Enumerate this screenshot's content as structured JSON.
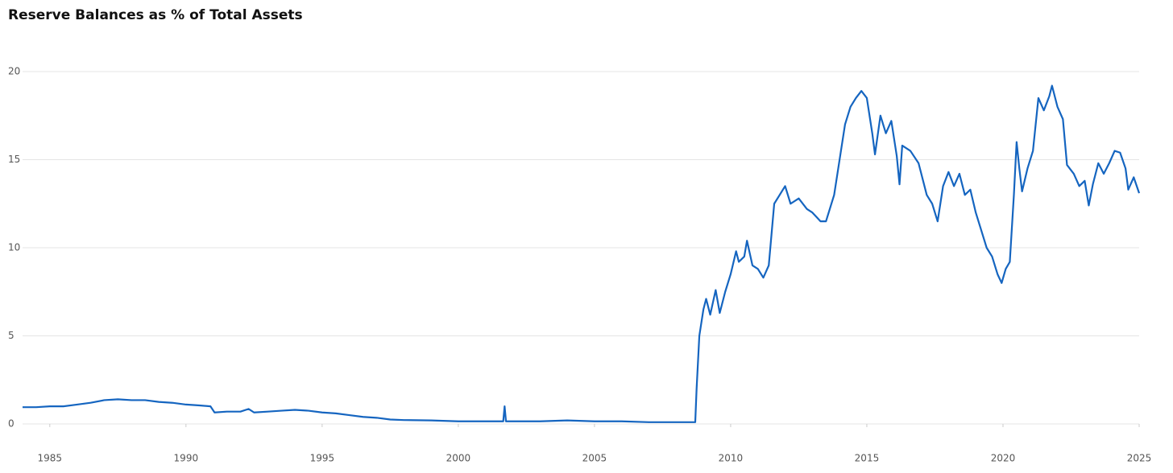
{
  "chart_data": {
    "type": "line",
    "title": "Reserve Balances as % of Total Assets",
    "x": [
      1984.0,
      1984.5,
      1985,
      1985.5,
      1986,
      1986.5,
      1987,
      1987.5,
      1988,
      1988.5,
      1989,
      1989.5,
      1990,
      1990.5,
      1990.9,
      1991.05,
      1991.5,
      1992,
      1992.3,
      1992.5,
      1993,
      1993.5,
      1994,
      1994.5,
      1995,
      1995.5,
      1996,
      1996.5,
      1997,
      1997.5,
      1998,
      1999,
      2000,
      2001,
      2001.65,
      2001.7,
      2001.75,
      2002,
      2003,
      2004,
      2005,
      2006,
      2007,
      2008,
      2008.7,
      2008.75,
      2008.85,
      2009,
      2009.1,
      2009.25,
      2009.45,
      2009.6,
      2009.8,
      2010,
      2010.2,
      2010.3,
      2010.5,
      2010.6,
      2010.8,
      2011,
      2011.2,
      2011.4,
      2011.6,
      2011.8,
      2012,
      2012.2,
      2012.5,
      2012.8,
      2013,
      2013.3,
      2013.5,
      2013.8,
      2014,
      2014.2,
      2014.4,
      2014.6,
      2014.8,
      2015,
      2015.2,
      2015.3,
      2015.5,
      2015.7,
      2015.9,
      2016.1,
      2016.2,
      2016.3,
      2016.6,
      2016.9,
      2017.2,
      2017.4,
      2017.6,
      2017.8,
      2018,
      2018.2,
      2018.4,
      2018.6,
      2018.8,
      2019,
      2019.2,
      2019.4,
      2019.6,
      2019.8,
      2019.95,
      2020.1,
      2020.25,
      2020.4,
      2020.5,
      2020.6,
      2020.7,
      2020.9,
      2021.1,
      2021.3,
      2021.5,
      2021.7,
      2021.8,
      2022,
      2022.2,
      2022.35,
      2022.6,
      2022.8,
      2023,
      2023.15,
      2023.3,
      2023.5,
      2023.7,
      2023.9,
      2024.1,
      2024.3,
      2024.5,
      2024.6,
      2024.8,
      2025
    ],
    "series": [
      {
        "color": "#1565c0",
        "values": [
          0.95,
          0.95,
          1.0,
          1.0,
          1.1,
          1.2,
          1.35,
          1.4,
          1.35,
          1.35,
          1.25,
          1.2,
          1.1,
          1.05,
          1.0,
          0.65,
          0.7,
          0.7,
          0.85,
          0.65,
          0.7,
          0.75,
          0.8,
          0.75,
          0.65,
          0.6,
          0.5,
          0.4,
          0.35,
          0.25,
          0.22,
          0.2,
          0.15,
          0.15,
          0.15,
          1.0,
          0.15,
          0.15,
          0.15,
          0.2,
          0.15,
          0.15,
          0.1,
          0.1,
          0.1,
          2,
          5,
          6.5,
          7.1,
          6.2,
          7.6,
          6.3,
          7.5,
          8.5,
          9.8,
          9.2,
          9.5,
          10.4,
          9.0,
          8.8,
          8.3,
          9.0,
          12.5,
          13.0,
          13.5,
          12.5,
          12.8,
          12.2,
          12.0,
          11.5,
          11.5,
          13.0,
          15,
          17,
          18,
          18.5,
          18.9,
          18.5,
          16.5,
          15.3,
          17.5,
          16.5,
          17.2,
          15.2,
          13.6,
          15.8,
          15.5,
          14.8,
          13.0,
          12.5,
          11.5,
          13.5,
          14.3,
          13.5,
          14.2,
          13.0,
          13.3,
          12.0,
          11.0,
          10.0,
          9.5,
          8.5,
          8.0,
          8.8,
          9.2,
          13.0,
          16.0,
          14.5,
          13.2,
          14.5,
          15.5,
          18.5,
          17.8,
          18.6,
          19.2,
          18.0,
          17.3,
          14.7,
          14.2,
          13.5,
          13.8,
          12.4,
          13.6,
          14.8,
          14.2,
          14.8,
          15.5,
          15.4,
          14.5,
          13.3,
          14.0,
          13.1
        ]
      }
    ],
    "xlim": [
      1984,
      2025
    ],
    "xticks": [
      1985,
      1990,
      1995,
      2000,
      2005,
      2010,
      2015,
      2020,
      2025
    ],
    "ylim": [
      0,
      20
    ],
    "yticks": [
      0,
      5,
      10,
      15,
      20
    ],
    "grid": true
  }
}
